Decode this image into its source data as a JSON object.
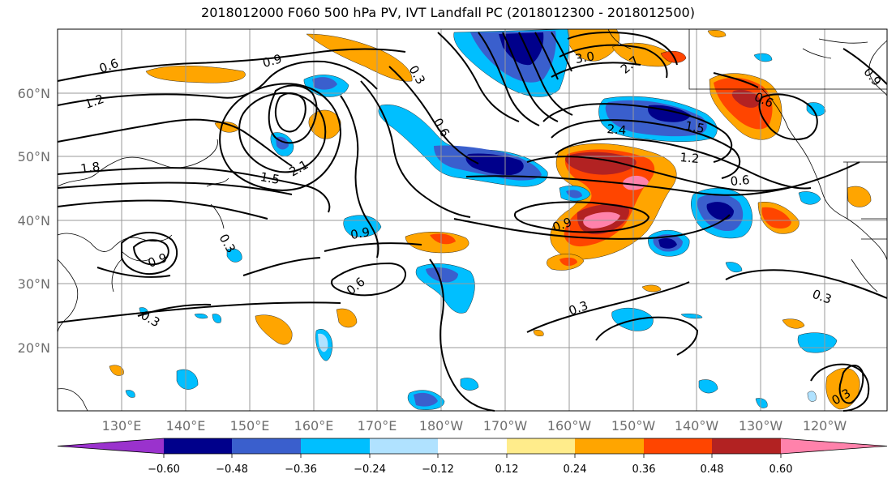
{
  "title": "2018012000 F060 500 hPa PV, IVT Landfall PC (2018012300 - 2018012500)",
  "lat_labels": [
    "60°N",
    "50°N",
    "40°N",
    "30°N",
    "20°N"
  ],
  "lon_labels": [
    "130°E",
    "140°E",
    "150°E",
    "160°E",
    "170°E",
    "180°W",
    "170°W",
    "160°W",
    "150°W",
    "140°W",
    "130°W",
    "120°W"
  ],
  "contour_labels": [
    "0.6",
    "0.9",
    "1.2",
    "1.5",
    "1.8",
    "2.1",
    "2.4",
    "3.0",
    "0.3",
    "0.6",
    "0.9",
    "0.3",
    "0.6",
    "0.9",
    "1.5",
    "1.2",
    "0.6",
    "0.9",
    "0.3",
    "0.6",
    "0.3",
    "0.3",
    "0.3",
    "2.7",
    "0.9"
  ],
  "colorbar": {
    "colors": [
      "#9a32cd",
      "#00008b",
      "#3a5fcd",
      "#00bfff",
      "#b0e2ff",
      "#ffffff",
      "#ffec8b",
      "#ffa500",
      "#ff4500",
      "#b22222",
      "#ff82ab"
    ],
    "tick_labels": [
      "−0.60",
      "−0.48",
      "−0.36",
      "−0.24",
      "−0.12",
      "0.12",
      "0.24",
      "0.36",
      "0.48",
      "0.60"
    ]
  }
}
